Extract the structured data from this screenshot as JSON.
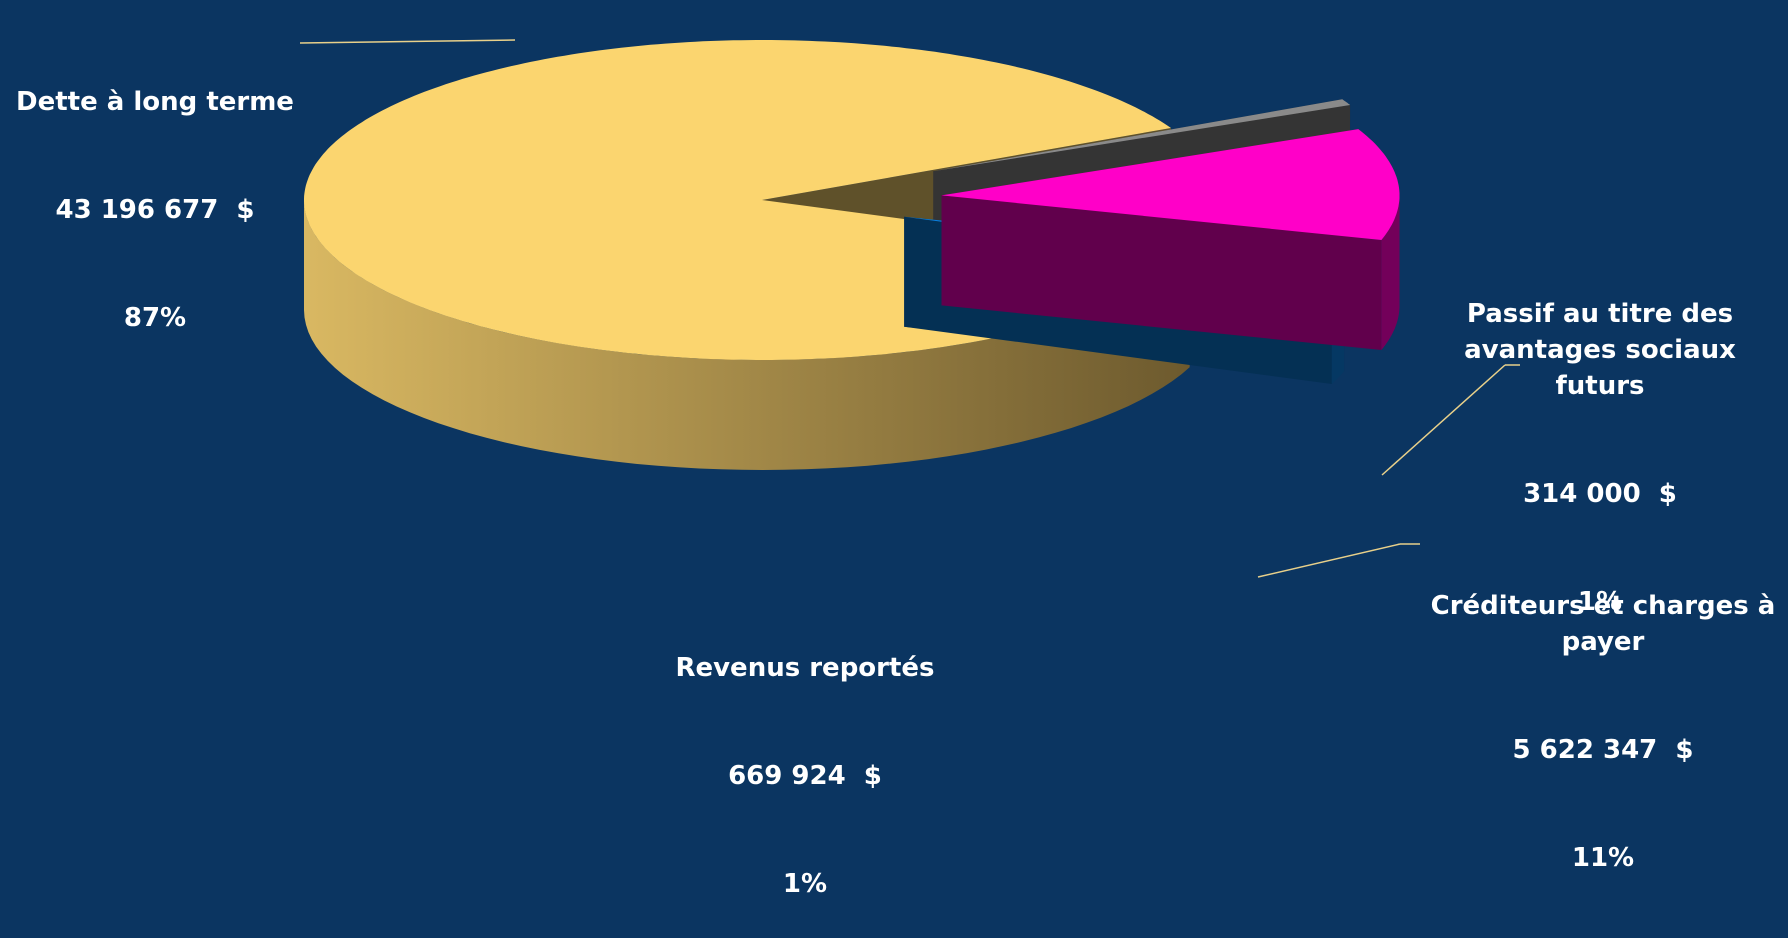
{
  "chart_data": {
    "type": "pie3d",
    "categories": [
      "Dette à long terme",
      "Passif au titre des avantages sociaux futurs",
      "Créditeurs et charges à payer",
      "Revenus reportés"
    ],
    "values": [
      43196677,
      314000,
      5622347,
      669924
    ],
    "value_labels": [
      "43 196 677  $",
      "314 000  $",
      "5 622 347  $",
      "669 924  $"
    ],
    "percents": [
      87,
      1,
      11,
      1
    ],
    "percent_labels": [
      "87%",
      "1%",
      "11%",
      "1%"
    ],
    "colors": [
      "#fbd56f",
      "#8a8a8a",
      "#ff00c8",
      "#0a7ddc"
    ]
  }
}
